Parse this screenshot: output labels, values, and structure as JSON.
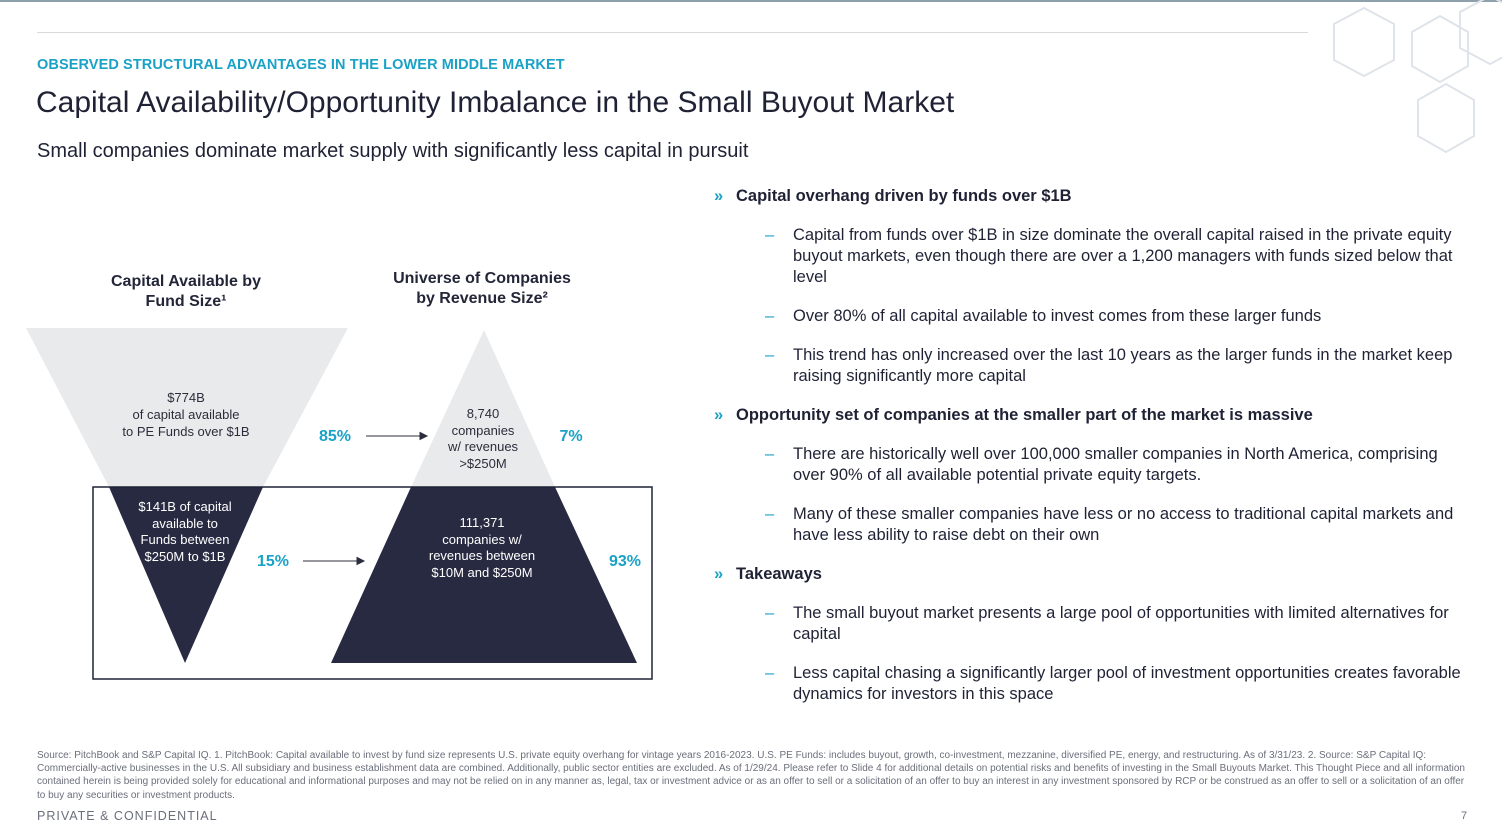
{
  "header": {
    "eyebrow": "OBSERVED STRUCTURAL ADVANTAGES IN THE LOWER MIDDLE MARKET",
    "title": "Capital Availability/Opportunity Imbalance in the Small Buyout Market",
    "subtitle": "Small companies dominate market supply with significantly less capital in pursuit"
  },
  "graphic": {
    "left_title_line1": "Capital Available by",
    "left_title_line2": "Fund Size¹",
    "right_title_line1": "Universe of Companies",
    "right_title_line2": "by Revenue Size²",
    "left_top_lines": [
      "$774B",
      "of capital available",
      "to PE Funds over $1B"
    ],
    "left_bottom_lines": [
      "$141B of capital",
      "available to",
      "Funds  between",
      "$250M to $1B"
    ],
    "right_top_lines": [
      "8,740",
      "companies",
      "w/ revenues",
      ">$250M"
    ],
    "right_bottom_lines": [
      "111,371",
      "companies w/",
      "revenues between",
      "$10M and $250M"
    ],
    "pct_left_top": "85%",
    "pct_left_bottom": "15%",
    "pct_right_top": "7%",
    "pct_right_bottom": "93%",
    "arrow_icon": "arrow-right-icon",
    "colors": {
      "light_gray": "#e9eaec",
      "navy": "#272a40",
      "accent": "#1aa2c6"
    }
  },
  "bullets": [
    {
      "heading": "Capital overhang driven by funds over $1B",
      "items": [
        "Capital from funds over $1B in size dominate the overall capital raised in the private equity buyout markets, even though there are over a 1,200 managers with funds sized below that level",
        "Over 80% of all capital available to invest comes from these larger funds",
        "This trend has only increased over the last 10 years as the larger funds in the market keep raising significantly more capital"
      ]
    },
    {
      "heading": "Opportunity set of companies at the smaller part of the market is massive",
      "items": [
        "There are historically well over 100,000 smaller companies in North America, comprising over 90% of all available potential private equity targets.",
        "Many of these smaller companies have less or no access to traditional capital markets and have less ability to raise debt on their own"
      ]
    },
    {
      "heading": "Takeaways",
      "items": [
        "The small buyout market presents a large pool of opportunities with limited alternatives for capital",
        "Less capital chasing a significantly larger pool of investment opportunities creates favorable dynamics for investors in this space"
      ]
    }
  ],
  "bullet_marks": {
    "level1": "»",
    "level2": "–"
  },
  "footnote": "Source: PitchBook and S&P Capital IQ. 1. PitchBook: Capital available to invest by fund size represents U.S. private equity overhang for vintage years 2016-2023. U.S. PE Funds: includes buyout, growth, co-investment, mezzanine, diversified PE, energy, and restructuring. As of 3/31/23. 2. Source: S&P Capital IQ: Commercially-active businesses in the U.S. All subsidiary and business establishment data are combined. Additionally, public sector entities are excluded. As of 1/29/24. Please refer to Slide 4 for additional details on potential risks and benefits of investing in the Small Buyouts Market. This Thought Piece and all information contained herein is being provided solely for educational and informational purposes and may not be relied on in any manner as, legal, tax or investment advice or as an offer to sell or a solicitation of an offer to buy an interest in any investment sponsored by RCP or be construed as an offer to sell or a solicitation of an offer to buy any securities or investment products.",
  "footer": {
    "confidential": "PRIVATE & CONFIDENTIAL",
    "page": "7"
  }
}
